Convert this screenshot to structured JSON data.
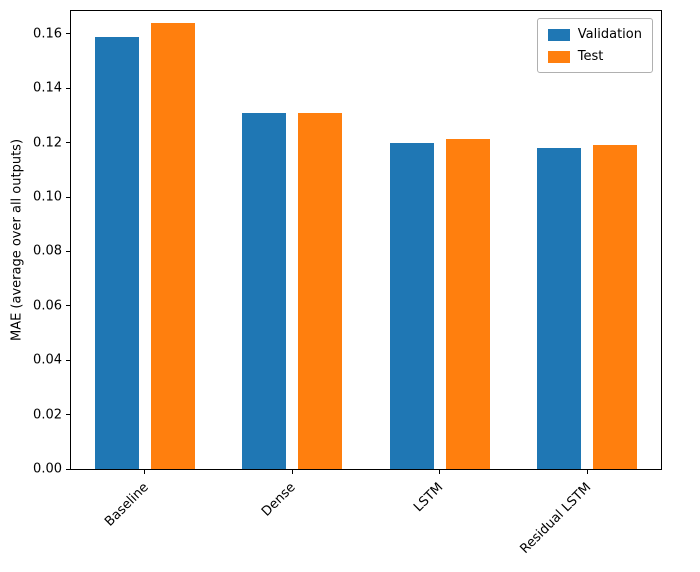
{
  "chart_data": {
    "type": "bar",
    "title": "",
    "xlabel": "",
    "ylabel": "MAE (average over all outputs)",
    "categories": [
      "Baseline",
      "Dense",
      "LSTM",
      "Residual LSTM"
    ],
    "series": [
      {
        "name": "Validation",
        "color": "#1f77b4",
        "values": [
          0.159,
          0.131,
          0.12,
          0.118
        ]
      },
      {
        "name": "Test",
        "color": "#ff7f0e",
        "values": [
          0.164,
          0.131,
          0.1215,
          0.119
        ]
      }
    ],
    "ylim": [
      0,
      0.1684
    ],
    "yticks": [
      0.0,
      0.02,
      0.04,
      0.06,
      0.08,
      0.1,
      0.12,
      0.14,
      0.16
    ],
    "grid": false,
    "legend_position": "upper right",
    "x_tick_rotation_deg": 45
  }
}
